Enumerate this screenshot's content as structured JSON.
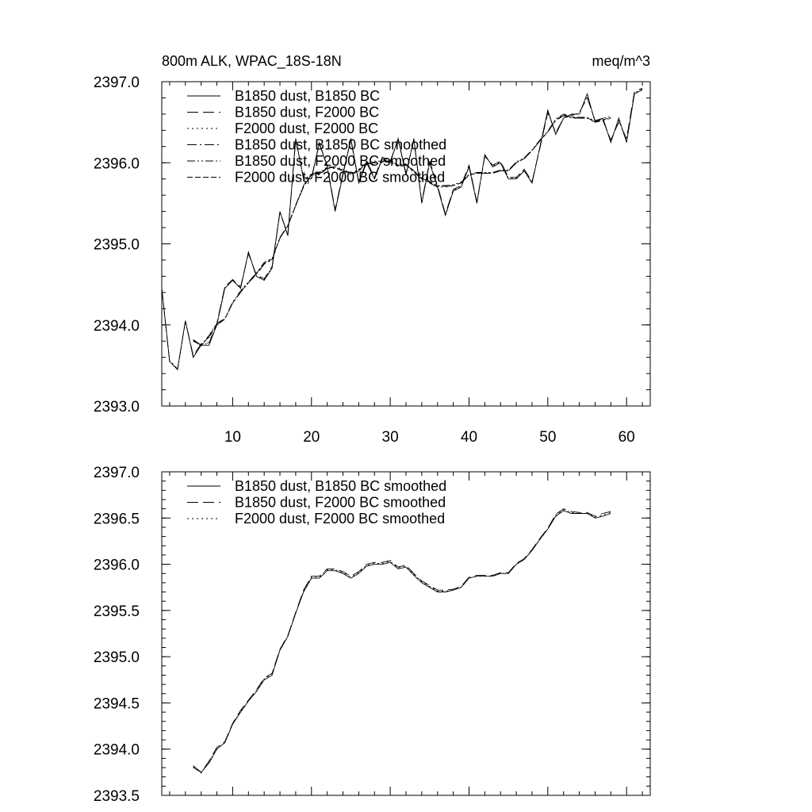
{
  "chart_data": [
    {
      "type": "line",
      "title_left": "800m ALK, WPAC_18S-18N",
      "title_right": "meq/m^3",
      "xlim": [
        1,
        63
      ],
      "ylim": [
        2393.0,
        2397.0
      ],
      "x_ticks": [
        10,
        20,
        30,
        40,
        50,
        60
      ],
      "x_tick_labels": [
        "10",
        "20",
        "30",
        "40",
        "50",
        "60"
      ],
      "y_ticks": [
        2393.0,
        2394.0,
        2395.0,
        2396.0,
        2397.0
      ],
      "y_tick_labels": [
        "2393.0",
        "2394.0",
        "2395.0",
        "2396.0",
        "2397.0"
      ],
      "legend_position": "top-left",
      "series": [
        {
          "name": "B1850 dust, B1850 BC",
          "dash": "solid",
          "start_x": 1,
          "values": [
            2394.45,
            2393.55,
            2393.45,
            2394.05,
            2393.6,
            2393.75,
            2393.75,
            2394.0,
            2394.45,
            2394.55,
            2394.45,
            2394.9,
            2394.6,
            2394.55,
            2394.7,
            2395.4,
            2395.1,
            2396.3,
            2395.8,
            2395.8,
            2396.25,
            2395.95,
            2395.4,
            2395.85,
            2396.3,
            2395.75,
            2396.0,
            2395.8,
            2396.05,
            2396.0,
            2396.3,
            2395.85,
            2396.3,
            2395.5,
            2396.0,
            2395.7,
            2395.35,
            2395.65,
            2395.7,
            2395.95,
            2395.5,
            2396.1,
            2395.95,
            2396.0,
            2395.8,
            2395.8,
            2395.9,
            2395.75,
            2396.2,
            2396.65,
            2396.35,
            2396.55,
            2396.6,
            2396.6,
            2396.85,
            2396.5,
            2396.55,
            2396.25,
            2396.55,
            2396.25,
            2396.85,
            2396.9
          ]
        },
        {
          "name": "B1850 dust, F2000 BC",
          "dash": "dash",
          "start_x": 1,
          "values": [
            2394.45,
            2393.55,
            2393.45,
            2394.05,
            2393.62,
            2393.77,
            2393.78,
            2394.02,
            2394.47,
            2394.56,
            2394.47,
            2394.88,
            2394.62,
            2394.57,
            2394.72,
            2395.38,
            2395.12,
            2396.28,
            2395.82,
            2395.82,
            2396.23,
            2395.97,
            2395.42,
            2395.87,
            2396.28,
            2395.77,
            2396.02,
            2395.82,
            2396.07,
            2396.02,
            2396.28,
            2395.87,
            2396.28,
            2395.52,
            2396.02,
            2395.72,
            2395.37,
            2395.67,
            2395.72,
            2395.97,
            2395.52,
            2396.08,
            2395.97,
            2396.02,
            2395.82,
            2395.82,
            2395.92,
            2395.77,
            2396.18,
            2396.62,
            2396.37,
            2396.55,
            2396.58,
            2396.62,
            2396.8,
            2396.52,
            2396.52,
            2396.28,
            2396.5,
            2396.3,
            2396.88,
            2396.92
          ]
        },
        {
          "name": "F2000 dust, F2000 BC",
          "dash": "dot",
          "start_x": 1,
          "values": [
            2394.45,
            2393.56,
            2393.46,
            2394.04,
            2393.61,
            2393.76,
            2393.77,
            2394.01,
            2394.46,
            2394.55,
            2394.46,
            2394.89,
            2394.61,
            2394.56,
            2394.71,
            2395.39,
            2395.11,
            2396.29,
            2395.81,
            2395.81,
            2396.24,
            2395.96,
            2395.41,
            2395.86,
            2396.29,
            2395.76,
            2396.01,
            2395.81,
            2396.06,
            2396.01,
            2396.29,
            2395.86,
            2396.29,
            2395.51,
            2396.01,
            2395.71,
            2395.36,
            2395.66,
            2395.71,
            2395.96,
            2395.51,
            2396.09,
            2395.96,
            2396.01,
            2395.81,
            2395.81,
            2395.91,
            2395.76,
            2396.19,
            2396.63,
            2396.36,
            2396.55,
            2396.59,
            2396.61,
            2396.82,
            2396.51,
            2396.53,
            2396.27,
            2396.52,
            2396.28,
            2396.86,
            2396.91
          ]
        },
        {
          "name": "B1850 dust, B1850 BC smoothed",
          "dash": "dashdot",
          "start_x": 5,
          "values": [
            2393.8,
            2393.75,
            2393.85,
            2394.0,
            2394.07,
            2394.27,
            2394.4,
            2394.52,
            2394.62,
            2394.75,
            2394.8,
            2395.07,
            2395.22,
            2395.47,
            2395.7,
            2395.85,
            2395.85,
            2395.93,
            2395.93,
            2395.9,
            2395.85,
            2395.9,
            2395.98,
            2396.0,
            2396.0,
            2396.02,
            2395.95,
            2395.97,
            2395.88,
            2395.8,
            2395.75,
            2395.7,
            2395.7,
            2395.72,
            2395.75,
            2395.85,
            2395.87,
            2395.87,
            2395.87,
            2395.9,
            2395.9,
            2396.0,
            2396.05,
            2396.15,
            2396.27,
            2396.38,
            2396.52,
            2396.58,
            2396.55,
            2396.55,
            2396.55,
            2396.5,
            2396.52,
            2396.55
          ]
        },
        {
          "name": "B1850 dust, F2000 BC smoothed",
          "dash": "dashdotdot",
          "start_x": 5,
          "values": [
            2393.82,
            2393.75,
            2393.87,
            2394.02,
            2394.08,
            2394.28,
            2394.42,
            2394.53,
            2394.64,
            2394.77,
            2394.82,
            2395.08,
            2395.23,
            2395.48,
            2395.72,
            2395.87,
            2395.87,
            2395.95,
            2395.95,
            2395.92,
            2395.87,
            2395.92,
            2396.0,
            2396.02,
            2396.02,
            2396.04,
            2395.97,
            2395.99,
            2395.9,
            2395.82,
            2395.77,
            2395.72,
            2395.72,
            2395.73,
            2395.76,
            2395.86,
            2395.88,
            2395.88,
            2395.88,
            2395.91,
            2395.91,
            2396.01,
            2396.06,
            2396.16,
            2396.28,
            2396.39,
            2396.54,
            2396.6,
            2396.57,
            2396.56,
            2396.56,
            2396.52,
            2396.55,
            2396.57
          ]
        },
        {
          "name": "F2000 dust, F2000 BC smoothed",
          "dash": "longdash",
          "start_x": 5,
          "values": [
            2393.81,
            2393.74,
            2393.86,
            2394.01,
            2394.07,
            2394.27,
            2394.41,
            2394.52,
            2394.63,
            2394.76,
            2394.81,
            2395.07,
            2395.22,
            2395.47,
            2395.71,
            2395.86,
            2395.86,
            2395.94,
            2395.94,
            2395.91,
            2395.86,
            2395.91,
            2395.99,
            2396.01,
            2396.01,
            2396.03,
            2395.96,
            2395.98,
            2395.89,
            2395.81,
            2395.76,
            2395.71,
            2395.71,
            2395.72,
            2395.75,
            2395.85,
            2395.87,
            2395.87,
            2395.87,
            2395.9,
            2395.9,
            2396.0,
            2396.05,
            2396.15,
            2396.27,
            2396.38,
            2396.53,
            2396.59,
            2396.56,
            2396.55,
            2396.55,
            2396.51,
            2396.53,
            2396.56
          ]
        }
      ]
    },
    {
      "type": "line",
      "xlim": [
        1,
        63
      ],
      "ylim": [
        2393.5,
        2397.0
      ],
      "x_ticks": [
        10,
        20,
        30,
        40,
        50,
        60
      ],
      "y_ticks": [
        2393.5,
        2394.0,
        2394.5,
        2395.0,
        2395.5,
        2396.0,
        2396.5,
        2397.0
      ],
      "y_tick_labels": [
        "2393.5",
        "2394.0",
        "2394.5",
        "2395.0",
        "2395.5",
        "2396.0",
        "2396.5",
        "2397.0"
      ],
      "legend_position": "top-left",
      "series": [
        {
          "name": "B1850 dust, B1850 BC smoothed",
          "dash": "solid",
          "start_x": 5,
          "values": [
            2393.8,
            2393.75,
            2393.85,
            2394.0,
            2394.07,
            2394.27,
            2394.4,
            2394.52,
            2394.62,
            2394.75,
            2394.8,
            2395.07,
            2395.22,
            2395.47,
            2395.7,
            2395.85,
            2395.85,
            2395.93,
            2395.93,
            2395.9,
            2395.85,
            2395.9,
            2395.98,
            2396.0,
            2396.0,
            2396.02,
            2395.95,
            2395.97,
            2395.88,
            2395.8,
            2395.75,
            2395.7,
            2395.7,
            2395.72,
            2395.75,
            2395.85,
            2395.87,
            2395.87,
            2395.87,
            2395.9,
            2395.9,
            2396.0,
            2396.05,
            2396.15,
            2396.27,
            2396.38,
            2396.52,
            2396.58,
            2396.55,
            2396.55,
            2396.55,
            2396.5,
            2396.52,
            2396.55
          ]
        },
        {
          "name": "B1850 dust, F2000 BC smoothed",
          "dash": "dash",
          "start_x": 5,
          "values": [
            2393.82,
            2393.75,
            2393.87,
            2394.02,
            2394.08,
            2394.28,
            2394.42,
            2394.53,
            2394.64,
            2394.77,
            2394.82,
            2395.08,
            2395.23,
            2395.48,
            2395.72,
            2395.87,
            2395.87,
            2395.95,
            2395.95,
            2395.92,
            2395.87,
            2395.92,
            2396.0,
            2396.02,
            2396.02,
            2396.04,
            2395.97,
            2395.99,
            2395.9,
            2395.82,
            2395.77,
            2395.72,
            2395.72,
            2395.73,
            2395.76,
            2395.86,
            2395.88,
            2395.88,
            2395.88,
            2395.91,
            2395.91,
            2396.01,
            2396.06,
            2396.16,
            2396.28,
            2396.39,
            2396.54,
            2396.6,
            2396.57,
            2396.56,
            2396.56,
            2396.52,
            2396.55,
            2396.57
          ]
        },
        {
          "name": "F2000 dust, F2000 BC smoothed",
          "dash": "dot",
          "start_x": 5,
          "values": [
            2393.81,
            2393.74,
            2393.86,
            2394.01,
            2394.07,
            2394.27,
            2394.41,
            2394.52,
            2394.63,
            2394.76,
            2394.81,
            2395.07,
            2395.22,
            2395.47,
            2395.71,
            2395.86,
            2395.86,
            2395.94,
            2395.94,
            2395.91,
            2395.86,
            2395.91,
            2395.99,
            2396.01,
            2396.01,
            2396.03,
            2395.96,
            2395.98,
            2395.89,
            2395.81,
            2395.76,
            2395.71,
            2395.71,
            2395.72,
            2395.75,
            2395.85,
            2395.87,
            2395.87,
            2395.87,
            2395.9,
            2395.9,
            2396.0,
            2396.05,
            2396.15,
            2396.27,
            2396.38,
            2396.53,
            2396.59,
            2396.56,
            2396.55,
            2396.55,
            2396.51,
            2396.53,
            2396.56
          ]
        }
      ]
    }
  ]
}
